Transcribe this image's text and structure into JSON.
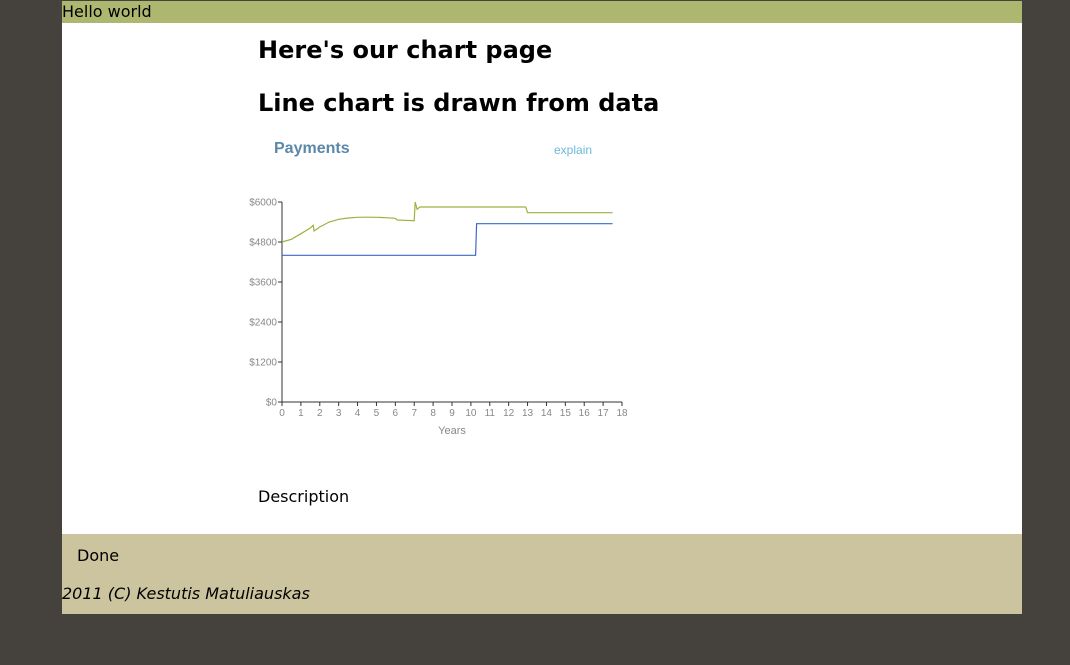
{
  "topbar": {
    "text": "Hello world"
  },
  "headings": {
    "h1": "Here's our chart page",
    "h2": "Line chart is drawn from data"
  },
  "chart": {
    "title": "Payments",
    "explain_link": "explain"
  },
  "description": "Description",
  "footer": {
    "done": "Done",
    "copyright": "2011 (C) Kestutis Matuliauskas"
  },
  "colors": {
    "page_background": "#45423d",
    "topbar": "#aeb770",
    "footer": "#ccc49f",
    "series_green": "#9bb33e",
    "series_blue": "#3b6ac4",
    "title_blue": "#5b88a8",
    "link_blue": "#6cb9d9"
  },
  "chart_data": {
    "type": "line",
    "title": "Payments",
    "xlabel": "Years",
    "ylabel": "",
    "xlim": [
      0,
      18
    ],
    "ylim": [
      0,
      6000
    ],
    "x_ticks": [
      "0",
      "1",
      "2",
      "3",
      "4",
      "5",
      "6",
      "7",
      "8",
      "9",
      "10",
      "11",
      "12",
      "13",
      "14",
      "15",
      "16",
      "17",
      "18"
    ],
    "y_ticks": [
      "$0",
      "$1200",
      "$2400",
      "$3600",
      "$4800",
      "$6000"
    ],
    "y_tick_values": [
      0,
      1200,
      2400,
      3600,
      4800,
      6000
    ],
    "grid": false,
    "series": [
      {
        "color": "#9bb33e",
        "points": [
          [
            0,
            4800
          ],
          [
            0.5,
            4880
          ],
          [
            1,
            5050
          ],
          [
            1.5,
            5220
          ],
          [
            1.65,
            5300
          ],
          [
            1.7,
            5130
          ],
          [
            2,
            5250
          ],
          [
            2.5,
            5400
          ],
          [
            3,
            5480
          ],
          [
            3.5,
            5520
          ],
          [
            4,
            5540
          ],
          [
            4.5,
            5545
          ],
          [
            5,
            5540
          ],
          [
            5.5,
            5530
          ],
          [
            6,
            5510
          ],
          [
            6.1,
            5460
          ],
          [
            6.5,
            5450
          ],
          [
            7,
            5440
          ],
          [
            7.05,
            6000
          ],
          [
            7.15,
            5780
          ],
          [
            7.3,
            5850
          ],
          [
            8,
            5850
          ],
          [
            10,
            5850
          ],
          [
            12,
            5850
          ],
          [
            12.9,
            5850
          ],
          [
            13,
            5680
          ],
          [
            14,
            5680
          ],
          [
            16,
            5680
          ],
          [
            17.5,
            5680
          ]
        ]
      },
      {
        "color": "#3b6ac4",
        "points": [
          [
            0,
            4400
          ],
          [
            2,
            4400
          ],
          [
            4,
            4400
          ],
          [
            6,
            4400
          ],
          [
            8,
            4400
          ],
          [
            10,
            4400
          ],
          [
            10.25,
            4400
          ],
          [
            10.3,
            5350
          ],
          [
            12,
            5350
          ],
          [
            14,
            5350
          ],
          [
            16,
            5350
          ],
          [
            17.5,
            5350
          ]
        ]
      }
    ]
  }
}
